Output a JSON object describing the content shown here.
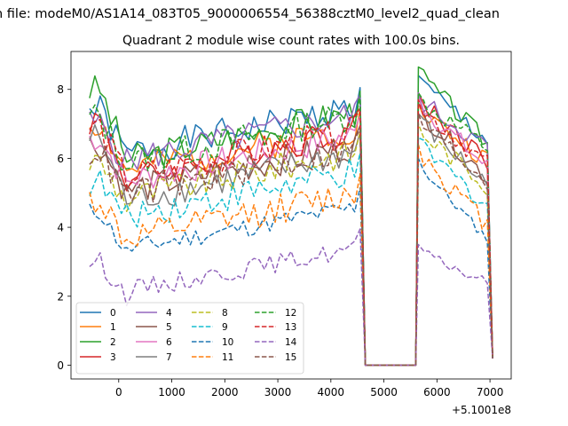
{
  "chart_data": {
    "type": "line",
    "suptitle": "n file: modeM0/AS1A14_083T05_9000006554_56388cztM0_level2_quad_clean",
    "title": "Quadrant 2 module wise count rates with 100.0s bins.",
    "x_offset_label": "+5.1001e8",
    "xlim": [
      -900,
      7400
    ],
    "ylim": [
      -0.4,
      9.1
    ],
    "xticks": [
      0,
      1000,
      2000,
      3000,
      4000,
      5000,
      6000,
      7000
    ],
    "xtick_labels": [
      "0",
      "1000",
      "2000",
      "3000",
      "4000",
      "5000",
      "6000",
      "7000"
    ],
    "yticks": [
      0,
      2,
      4,
      6,
      8
    ],
    "ytick_labels": [
      "0",
      "2",
      "4",
      "6",
      "8"
    ],
    "legend_position": "lower-left",
    "segments": [
      {
        "x_start": -550,
        "x_end": 4550,
        "step": 100
      },
      {
        "x_start": 5650,
        "x_end": 7050,
        "step": 100
      }
    ],
    "gap": {
      "x": [
        4650,
        4750,
        5500,
        5600
      ],
      "y": [
        0,
        0,
        0,
        0
      ]
    },
    "series": [
      {
        "name": "0",
        "color": "#1f77b4",
        "dash": "solid",
        "level1": 6.8,
        "level2": 7.2,
        "start": 7.4,
        "peak": 8.4,
        "seed": 1
      },
      {
        "name": "1",
        "color": "#ff7f0e",
        "dash": "solid",
        "level1": 6.3,
        "level2": 6.6,
        "start": 7.0,
        "peak": 7.6,
        "seed": 2
      },
      {
        "name": "2",
        "color": "#2ca02c",
        "dash": "solid",
        "level1": 6.6,
        "level2": 7.1,
        "start": 8.0,
        "peak": 8.65,
        "seed": 3
      },
      {
        "name": "3",
        "color": "#d62728",
        "dash": "solid",
        "level1": 6.0,
        "level2": 6.6,
        "start": 7.1,
        "peak": 7.9,
        "seed": 4
      },
      {
        "name": "4",
        "color": "#9467bd",
        "dash": "solid",
        "level1": 6.6,
        "level2": 7.0,
        "start": 7.0,
        "peak": 7.9,
        "seed": 5
      },
      {
        "name": "5",
        "color": "#8c564b",
        "dash": "solid",
        "level1": 5.7,
        "level2": 6.1,
        "start": 6.4,
        "peak": 7.6,
        "seed": 6
      },
      {
        "name": "6",
        "color": "#e377c2",
        "dash": "solid",
        "level1": 6.0,
        "level2": 6.4,
        "start": 6.6,
        "peak": 7.8,
        "seed": 7
      },
      {
        "name": "7",
        "color": "#7f7f7f",
        "dash": "solid",
        "level1": 5.4,
        "level2": 5.9,
        "start": 6.6,
        "peak": 7.3,
        "seed": 8
      },
      {
        "name": "8",
        "color": "#bcbd22",
        "dash": "dashed",
        "level1": 5.5,
        "level2": 5.9,
        "start": 5.9,
        "peak": 7.0,
        "seed": 9
      },
      {
        "name": "9",
        "color": "#17becf",
        "dash": "dashed",
        "level1": 5.0,
        "level2": 5.3,
        "start": 5.3,
        "peak": 6.6,
        "seed": 10
      },
      {
        "name": "10",
        "color": "#1f77b4",
        "dash": "dashed",
        "level1": 4.0,
        "level2": 4.3,
        "start": 4.45,
        "peak": 6.0,
        "seed": 11
      },
      {
        "name": "11",
        "color": "#ff7f0e",
        "dash": "dashed",
        "level1": 4.3,
        "level2": 4.7,
        "start": 4.8,
        "peak": 6.4,
        "seed": 12
      },
      {
        "name": "12",
        "color": "#2ca02c",
        "dash": "dashed",
        "level1": 6.5,
        "level2": 7.0,
        "start": 7.2,
        "peak": 7.9,
        "seed": 13
      },
      {
        "name": "13",
        "color": "#d62728",
        "dash": "dashed",
        "level1": 6.1,
        "level2": 6.5,
        "start": 6.9,
        "peak": 7.7,
        "seed": 14
      },
      {
        "name": "14",
        "color": "#9467bd",
        "dash": "dashed",
        "level1": 2.8,
        "level2": 3.1,
        "start": 3.0,
        "peak": 3.5,
        "seed": 15
      },
      {
        "name": "15",
        "color": "#8c564b",
        "dash": "dashed",
        "level1": 5.6,
        "level2": 6.0,
        "start": 6.2,
        "peak": 7.3,
        "seed": 16
      }
    ]
  }
}
